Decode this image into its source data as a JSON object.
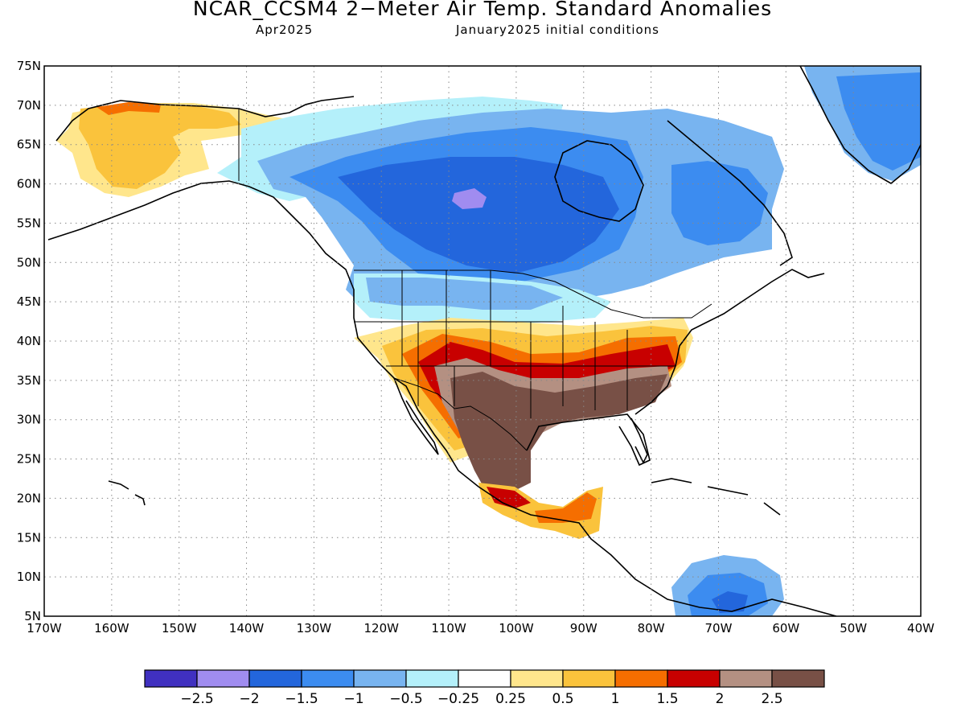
{
  "title": "NCAR_CCSM4 2−Meter Air Temp. Standard Anomalies",
  "subtitle_left": "Apr2025",
  "subtitle_right": "January2025 initial conditions",
  "map": {
    "projection": "lat-lon",
    "lon_range": [
      -170,
      -40
    ],
    "lat_range": [
      5,
      75
    ],
    "grid": "dotted",
    "lat_labels": [
      "5N",
      "10N",
      "15N",
      "20N",
      "25N",
      "30N",
      "35N",
      "40N",
      "45N",
      "50N",
      "55N",
      "60N",
      "65N",
      "70N",
      "75N"
    ],
    "lon_labels": [
      "170W",
      "160W",
      "150W",
      "140W",
      "130W",
      "120W",
      "110W",
      "100W",
      "90W",
      "80W",
      "70W",
      "60W",
      "50W",
      "40W"
    ]
  },
  "colorbar": {
    "colors": [
      "#4030c0",
      "#a08cf0",
      "#2366dc",
      "#3c8cf0",
      "#78b4f0",
      "#b4f0fa",
      "#ffffff",
      "#ffe68c",
      "#fac33c",
      "#f56e00",
      "#c80000",
      "#b49082",
      "#785046"
    ],
    "labels": [
      "−2.5",
      "−2",
      "−1.5",
      "−1",
      "−0.5",
      "−0.25",
      "0.25",
      "0.5",
      "1",
      "1.5",
      "2",
      "2.5"
    ]
  },
  "regions": [
    {
      "name": "Alaska",
      "color": "#fac33c"
    },
    {
      "name": "Canada interior",
      "color": "#2366dc"
    },
    {
      "name": "Southwest US / Mexico",
      "color": "#785046"
    },
    {
      "name": "Greenland",
      "color": "#3c8cf0"
    },
    {
      "name": "Northern South America",
      "color": "#78b4f0"
    }
  ]
}
